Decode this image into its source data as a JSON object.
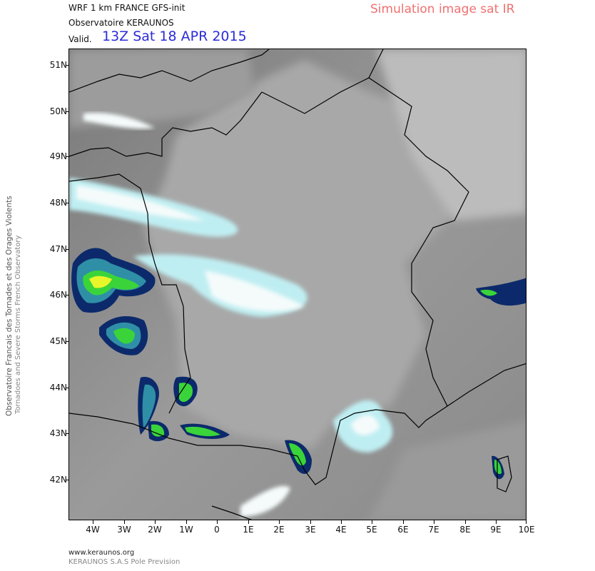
{
  "header": {
    "model_line": "WRF 1 km FRANCE  GFS-init",
    "org_line": "Observatoire KERAUNOS",
    "valid_label": "Valid.",
    "valid_time": "13Z Sat 18 APR 2015",
    "product_title": "Simulation image sat IR"
  },
  "side_text": {
    "line1": "Observatoire Francais des Tornades et des Orages Violents",
    "line2": "Tornadoes and Severe Storms French Observatory"
  },
  "map": {
    "lat_labels": [
      "51N",
      "50N",
      "49N",
      "48N",
      "47N",
      "46N",
      "45N",
      "44N",
      "43N",
      "42N"
    ],
    "lon_labels": [
      "4W",
      "3W",
      "2W",
      "1W",
      "0",
      "1E",
      "2E",
      "3E",
      "4E",
      "5E",
      "6E",
      "7E",
      "8E",
      "9E",
      "10E"
    ],
    "colors": {
      "cloud_high": "#bfeef2",
      "cloud_white": "#f5fbfb",
      "storm_dark": "#0c2a6b",
      "storm_teal": "#2f8fa6",
      "storm_green": "#3ad43a",
      "storm_yellow": "#e8f52a",
      "coast": "#000000"
    }
  },
  "footer": {
    "url": "www.keraunos.org",
    "company": "KERAUNOS S.A.S Pole Prevision"
  }
}
